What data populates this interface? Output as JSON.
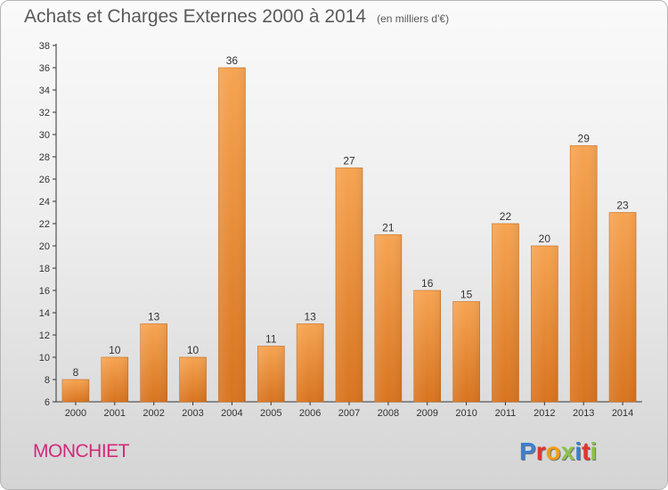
{
  "header": {
    "title": "Achats et Charges Externes 2000 à 2014",
    "subtitle": "(en milliers d'€)"
  },
  "footer": {
    "commune": "MONCHIET",
    "logo_letters": [
      {
        "char": "P",
        "color": "#3a7fcf"
      },
      {
        "char": "r",
        "color": "#e3342f"
      },
      {
        "char": "o",
        "color": "#f39c12"
      },
      {
        "char": "x",
        "color": "#8bc34a"
      },
      {
        "char": "i",
        "color": "#3a7fcf"
      },
      {
        "char": "t",
        "color": "#e3342f"
      },
      {
        "char": "i",
        "color": "#8bc34a"
      }
    ]
  },
  "chart_data": {
    "type": "bar",
    "categories": [
      "2000",
      "2001",
      "2002",
      "2003",
      "2004",
      "2005",
      "2006",
      "2007",
      "2008",
      "2009",
      "2010",
      "2011",
      "2012",
      "2013",
      "2014"
    ],
    "values": [
      8,
      10,
      13,
      10,
      36,
      11,
      13,
      27,
      21,
      16,
      15,
      22,
      20,
      29,
      23
    ],
    "ylim": [
      6,
      38
    ],
    "yticks": [
      6,
      8,
      10,
      12,
      14,
      16,
      18,
      20,
      22,
      24,
      26,
      28,
      30,
      32,
      34,
      36,
      38
    ],
    "grid": false,
    "bar_color_top": "#f6a452",
    "bar_color_bottom": "#d8741f"
  }
}
